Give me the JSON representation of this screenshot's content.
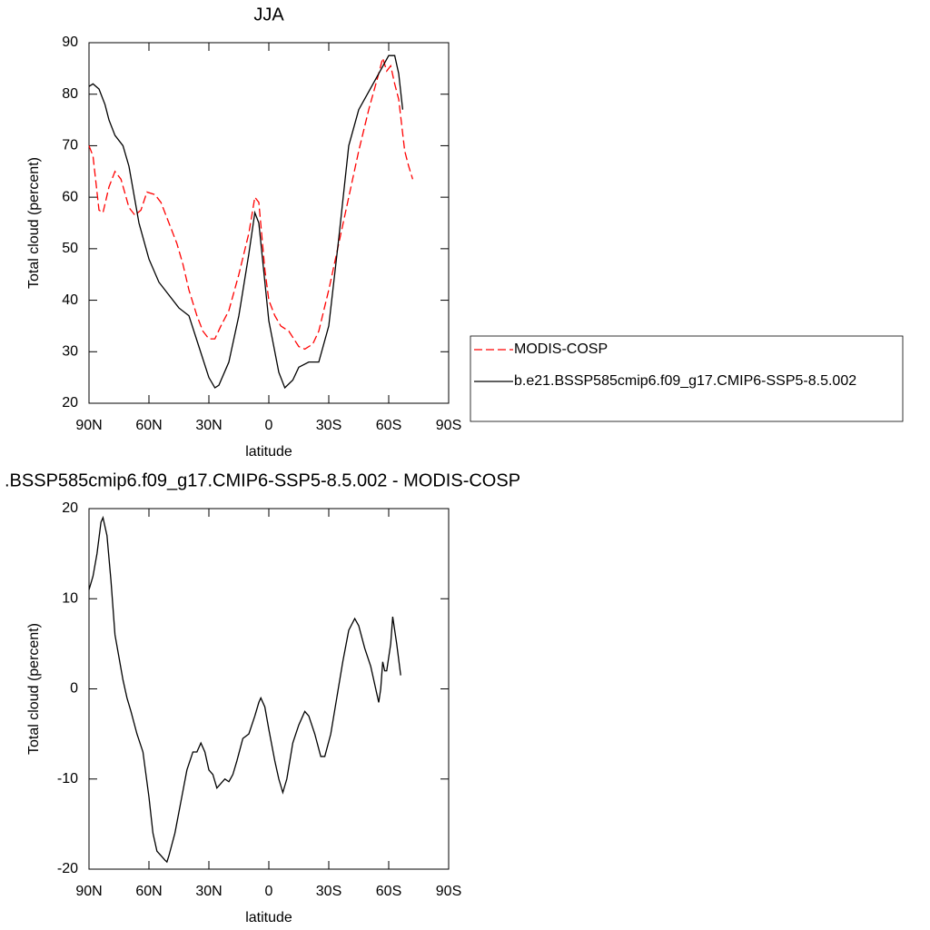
{
  "chart_data": [
    {
      "type": "line",
      "title": "JJA",
      "xlabel": "latitude",
      "ylabel": "Total cloud (percent)",
      "xlim": [
        90,
        -90
      ],
      "ylim": [
        20,
        90
      ],
      "xticks": [
        {
          "value": 90,
          "label": "90N"
        },
        {
          "value": 60,
          "label": "60N"
        },
        {
          "value": 30,
          "label": "30N"
        },
        0,
        {
          "value": -30,
          "label": "30S"
        },
        {
          "value": -60,
          "label": "60S"
        },
        {
          "value": -90,
          "label": "90S"
        }
      ],
      "yticks": [
        20,
        30,
        40,
        50,
        60,
        70,
        80,
        90
      ],
      "legend": "outside-right",
      "series": [
        {
          "name": "MODIS-COSP",
          "color": "#ff0000",
          "dash": true,
          "x": [
            90,
            88,
            85,
            83,
            80,
            77,
            74,
            70,
            67,
            64,
            61,
            57,
            54,
            50,
            46,
            43,
            40,
            36,
            33,
            30,
            27,
            24,
            20,
            15,
            10,
            7,
            5,
            2,
            0,
            -3,
            -6,
            -10,
            -15,
            -18,
            -22,
            -25,
            -30,
            -35,
            -40,
            -45,
            -50,
            -55,
            -57,
            -59,
            -61,
            -63,
            -65,
            -68,
            -70,
            -72
          ],
          "values": [
            70,
            68,
            57.5,
            57,
            62,
            65,
            63.5,
            58,
            56.5,
            57.5,
            61,
            60.5,
            59,
            55,
            51,
            47,
            42,
            37,
            34,
            32.5,
            32.5,
            35,
            38,
            45,
            53,
            60,
            59,
            46,
            40,
            37,
            35,
            34,
            31,
            30.5,
            31.5,
            34,
            42,
            51,
            60,
            69,
            77,
            84,
            87,
            84.5,
            85.5,
            82,
            79,
            69,
            66,
            63.5
          ]
        },
        {
          "name": "b.e21.BSSP585cmip6.f09_g17.CMIP6-SSP5-8.5.002",
          "color": "#000000",
          "dash": false,
          "x": [
            90,
            88,
            85,
            82,
            80,
            77,
            73,
            70,
            65,
            60,
            55,
            50,
            45,
            40,
            35,
            30,
            27,
            25,
            20,
            15,
            10,
            7,
            5,
            0,
            -5,
            -8,
            -12,
            -15,
            -20,
            -25,
            -30,
            -35,
            -40,
            -45,
            -50,
            -55,
            -60,
            -63,
            -65,
            -67
          ],
          "values": [
            81.5,
            82,
            81,
            78,
            75,
            72,
            70,
            66,
            55,
            48,
            43.5,
            41,
            38.5,
            37,
            31,
            25,
            23,
            23.5,
            28,
            37,
            49,
            57,
            55,
            36,
            26,
            23,
            24.5,
            27,
            28,
            28,
            35,
            52,
            70,
            77,
            80.5,
            84,
            87.5,
            87.5,
            84,
            77
          ]
        }
      ]
    },
    {
      "type": "line",
      "title": ".BSSP585cmip6.f09_g17.CMIP6-SSP5-8.5.002 - MODIS-COSP",
      "xlabel": "latitude",
      "ylabel": "Total cloud (percent)",
      "xlim": [
        90,
        -90
      ],
      "ylim": [
        -20,
        20
      ],
      "xticks": [
        {
          "value": 90,
          "label": "90N"
        },
        {
          "value": 60,
          "label": "60N"
        },
        {
          "value": 30,
          "label": "30N"
        },
        0,
        {
          "value": -30,
          "label": "30S"
        },
        {
          "value": -60,
          "label": "60S"
        },
        {
          "value": -90,
          "label": "90S"
        }
      ],
      "yticks": [
        -20,
        -10,
        0,
        10,
        20
      ],
      "series": [
        {
          "color": "#000000",
          "dash": false,
          "x": [
            90,
            88,
            86,
            84,
            83,
            81,
            79,
            77,
            75,
            73,
            71,
            69,
            66,
            63,
            60,
            58,
            56,
            54,
            52,
            51,
            50,
            47,
            44,
            41,
            38,
            36,
            34,
            32,
            30,
            28,
            26,
            24,
            22,
            20,
            18,
            16,
            13,
            10,
            7,
            5,
            4,
            2,
            0,
            -3,
            -5,
            -7,
            -9,
            -12,
            -15,
            -18,
            -20,
            -23,
            -26,
            -28,
            -31,
            -34,
            -37,
            -40,
            -43,
            -45,
            -48,
            -51,
            -53,
            -55,
            -56,
            -57,
            -58,
            -59,
            -61,
            -62,
            -64,
            -66
          ],
          "values": [
            11,
            12.5,
            15,
            18.5,
            19,
            17,
            12,
            6,
            3.5,
            1,
            -1,
            -2.5,
            -5,
            -7,
            -12,
            -16,
            -18,
            -18.5,
            -19,
            -19.2,
            -18.5,
            -16,
            -12.5,
            -9,
            -7,
            -7,
            -6,
            -7,
            -9,
            -9.5,
            -11,
            -10.5,
            -10,
            -10.3,
            -9.5,
            -8,
            -5.5,
            -5,
            -3,
            -1.5,
            -1,
            -2,
            -4.5,
            -8,
            -10,
            -11.5,
            -10,
            -6,
            -4,
            -2.5,
            -3,
            -5,
            -7.5,
            -7.5,
            -5,
            -1,
            3,
            6.5,
            7.8,
            7,
            4.5,
            2.5,
            0.5,
            -1.5,
            0,
            3,
            2,
            2,
            5,
            8,
            5,
            1.5
          ]
        }
      ]
    }
  ]
}
